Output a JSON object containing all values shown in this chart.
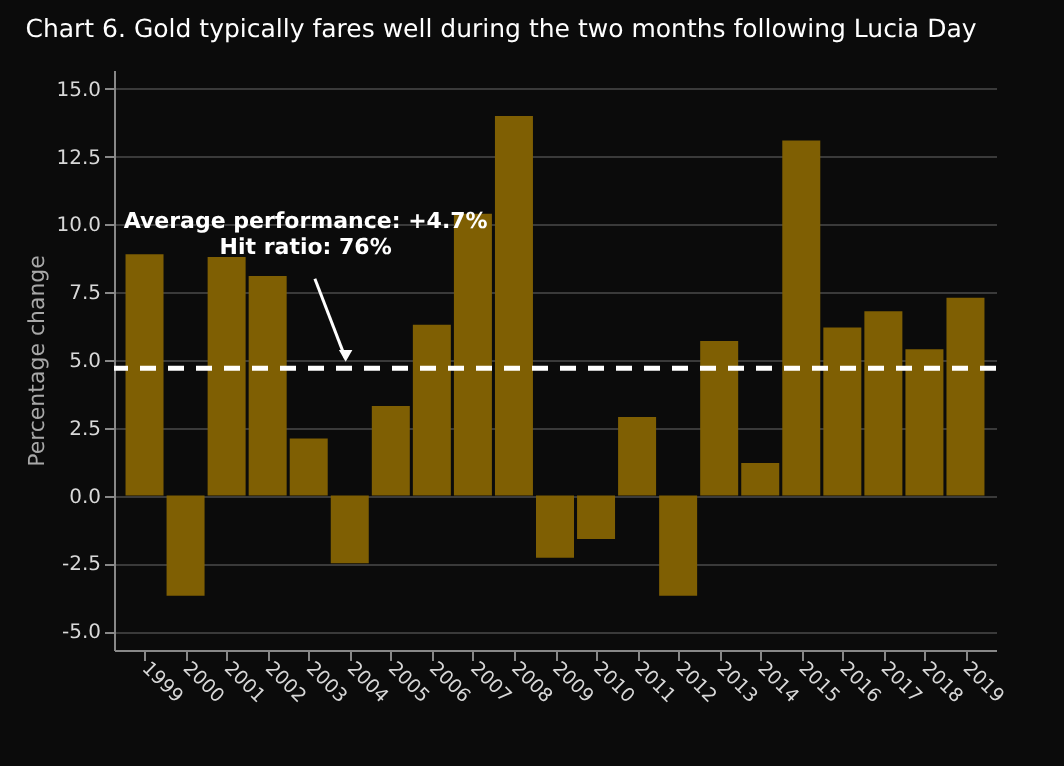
{
  "chart_data": {
    "type": "bar",
    "title": "Chart 6. Gold typically fares well during the two months following Lucia Day",
    "ylabel": "Percentage change",
    "categories": [
      "1999",
      "2000",
      "2001",
      "2002",
      "2003",
      "2004",
      "2005",
      "2006",
      "2007",
      "2008",
      "2009",
      "2010",
      "2011",
      "2012",
      "2013",
      "2014",
      "2015",
      "2016",
      "2017",
      "2018",
      "2019"
    ],
    "values": [
      8.9,
      -3.7,
      8.8,
      8.1,
      2.1,
      -2.5,
      3.3,
      6.3,
      10.4,
      14.0,
      -2.3,
      -1.6,
      2.9,
      -3.7,
      5.7,
      1.2,
      13.1,
      6.2,
      6.8,
      5.4,
      7.3
    ],
    "color": "#7f5f03",
    "ylim": [
      -5.7,
      15.7
    ],
    "yticks": [
      {
        "value": -5,
        "label": "-5.0"
      },
      {
        "value": -2.5,
        "label": "-2.5"
      },
      {
        "value": 0,
        "label": "0.0"
      },
      {
        "value": 2.5,
        "label": "2.5"
      },
      {
        "value": 5,
        "label": "5.0"
      },
      {
        "value": 7.5,
        "label": "7.5"
      },
      {
        "value": 10,
        "label": "10.0"
      },
      {
        "value": 12.5,
        "label": "12.5"
      },
      {
        "value": 15,
        "label": "15.0"
      }
    ],
    "grid": "y",
    "ref_lines": [
      {
        "axis": "y",
        "value": 4.7,
        "color": "#ffffff",
        "line_style": "dashed"
      }
    ],
    "annotations": [
      {
        "text": "Average performance: +4.7%\nHit ratio: 76%",
        "x": "2004",
        "y": 4.7
      }
    ]
  }
}
